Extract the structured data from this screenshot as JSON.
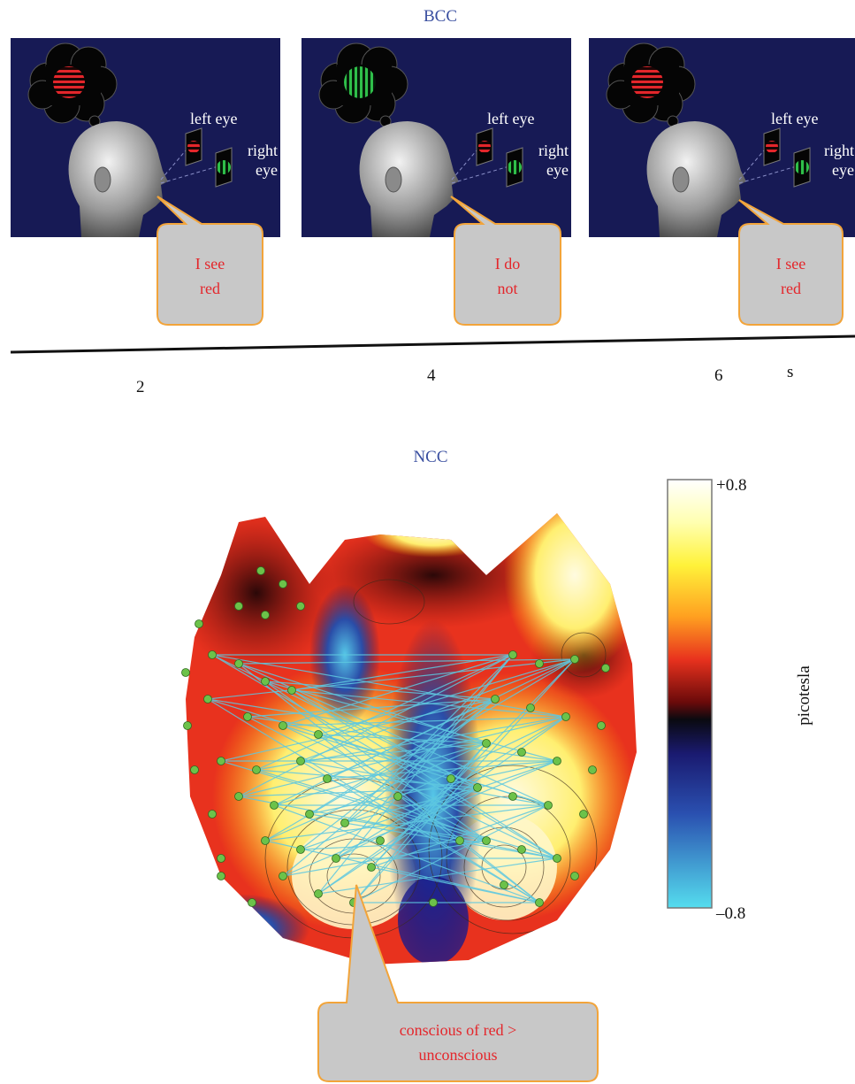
{
  "bcc": {
    "title": "BCC",
    "panels": [
      {
        "left_label": "left eye",
        "right_label": "right eye",
        "thought": "red",
        "speech": [
          "I see",
          "red"
        ]
      },
      {
        "left_label": "left eye",
        "right_label": "right eye",
        "thought": "green",
        "speech": [
          "I do",
          "not"
        ]
      },
      {
        "left_label": "left eye",
        "right_label": "right eye",
        "thought": "red",
        "speech": [
          "I see",
          "red"
        ]
      }
    ],
    "timeline": {
      "ticks": [
        "2",
        "4",
        "6"
      ],
      "unit": "s"
    }
  },
  "ncc": {
    "title": "NCC",
    "colorbar": {
      "max_label": "+0.8",
      "min_label": "–0.8",
      "unit_label": "picotesla"
    },
    "callout": [
      "conscious of red >",
      "unconscious"
    ]
  },
  "colors": {
    "panel_bg": "#171a55",
    "red_stimulus": "#e4262b",
    "green_stimulus": "#2fbf4a",
    "bubble_fill": "#c8c8c8",
    "bubble_border": "#f2a43a",
    "sensor_dot": "#6cc24a",
    "connection_line": "#5ec8e0"
  }
}
